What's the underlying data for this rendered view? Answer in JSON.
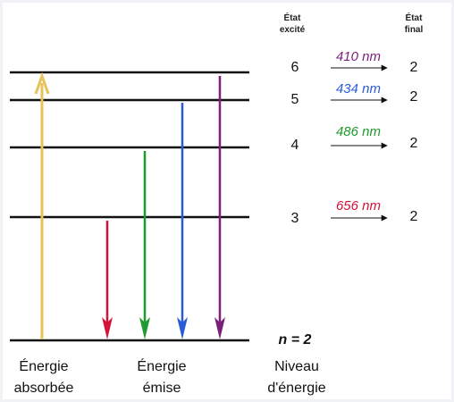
{
  "headers": {
    "excited_line1": "État",
    "excited_line2": "excité",
    "final_line1": "État",
    "final_line2": "final"
  },
  "rows": [
    {
      "excited": "6",
      "wavelength": "410 nm",
      "final": "2",
      "color": "#7a1f7a"
    },
    {
      "excited": "5",
      "wavelength": "434 nm",
      "final": "2",
      "color": "#2a5bd7"
    },
    {
      "excited": "4",
      "wavelength": "486 nm",
      "final": "2",
      "color": "#1e9a2e"
    },
    {
      "excited": "3",
      "wavelength": "656 nm",
      "final": "2",
      "color": "#d4123a"
    }
  ],
  "ground_level": {
    "label": "n = 2"
  },
  "footer": {
    "absorbed_line1": "Énergie",
    "absorbed_line2": "absorbée",
    "emitted_line1": "Énergie",
    "emitted_line2": "émise",
    "level_line1": "Niveau",
    "level_line2": "d'énergie"
  },
  "colors": {
    "absorbed_arrow": "#e8c25a",
    "level_lines": "#111111"
  }
}
